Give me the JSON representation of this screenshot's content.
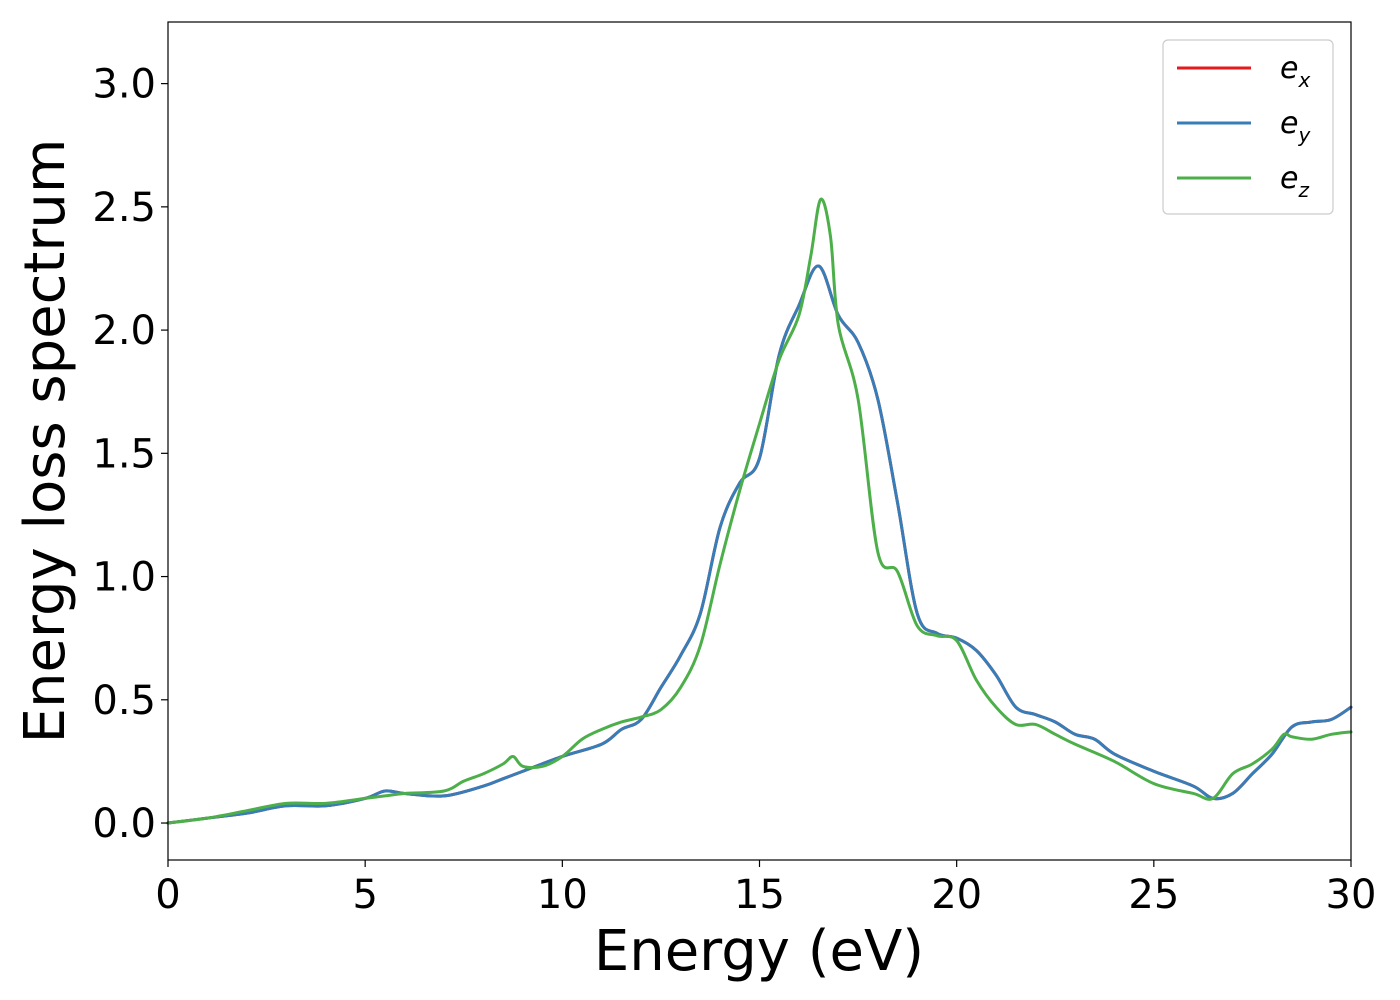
{
  "chart_data": {
    "type": "line",
    "title": "",
    "xlabel": "Energy (eV)",
    "ylabel": "Energy loss spectrum",
    "xlim": [
      0,
      30
    ],
    "ylim": [
      -0.15,
      3.25
    ],
    "xticks": [
      0,
      5,
      10,
      15,
      20,
      25,
      30
    ],
    "xtick_labels": [
      "0",
      "5",
      "10",
      "15",
      "20",
      "25",
      "30"
    ],
    "yticks": [
      0.0,
      0.5,
      1.0,
      1.5,
      2.0,
      2.5,
      3.0
    ],
    "ytick_labels": [
      "0.0",
      "0.5",
      "1.0",
      "1.5",
      "2.0",
      "2.5",
      "3.0"
    ],
    "grid": false,
    "legend_position": "top-right",
    "series": [
      {
        "name": "e_x",
        "legend_base": "e",
        "legend_sub": "x",
        "color": "#e41a1c",
        "x": [
          0,
          1,
          2,
          3,
          4,
          5,
          5.5,
          6,
          7,
          8,
          8.5,
          9,
          10,
          11,
          11.5,
          12,
          12.5,
          13,
          13.5,
          14,
          14.5,
          15,
          15.5,
          16,
          16.5,
          17,
          17.5,
          18,
          18.5,
          19,
          19.5,
          20,
          20.5,
          21,
          21.5,
          22,
          22.5,
          23,
          23.5,
          24,
          25,
          26,
          26.5,
          27,
          27.5,
          28,
          28.5,
          29,
          29.5,
          30
        ],
        "y": [
          0.0,
          0.02,
          0.04,
          0.07,
          0.07,
          0.1,
          0.13,
          0.12,
          0.11,
          0.15,
          0.18,
          0.21,
          0.27,
          0.32,
          0.38,
          0.42,
          0.55,
          0.68,
          0.85,
          1.2,
          1.38,
          1.48,
          1.9,
          2.1,
          2.26,
          2.06,
          1.95,
          1.72,
          1.3,
          0.85,
          0.77,
          0.75,
          0.7,
          0.6,
          0.47,
          0.44,
          0.41,
          0.36,
          0.34,
          0.28,
          0.21,
          0.15,
          0.1,
          0.12,
          0.2,
          0.28,
          0.39,
          0.41,
          0.42,
          0.47
        ]
      },
      {
        "name": "e_y",
        "legend_base": "e",
        "legend_sub": "y",
        "color": "#377eb8",
        "x": [
          0,
          1,
          2,
          3,
          4,
          5,
          5.5,
          6,
          7,
          8,
          8.5,
          9,
          10,
          11,
          11.5,
          12,
          12.5,
          13,
          13.5,
          14,
          14.5,
          15,
          15.5,
          16,
          16.5,
          17,
          17.5,
          18,
          18.5,
          19,
          19.5,
          20,
          20.5,
          21,
          21.5,
          22,
          22.5,
          23,
          23.5,
          24,
          25,
          26,
          26.5,
          27,
          27.5,
          28,
          28.5,
          29,
          29.5,
          30
        ],
        "y": [
          0.0,
          0.02,
          0.04,
          0.07,
          0.07,
          0.1,
          0.13,
          0.12,
          0.11,
          0.15,
          0.18,
          0.21,
          0.27,
          0.32,
          0.38,
          0.42,
          0.55,
          0.68,
          0.85,
          1.2,
          1.38,
          1.48,
          1.9,
          2.1,
          2.26,
          2.06,
          1.95,
          1.72,
          1.3,
          0.85,
          0.77,
          0.75,
          0.7,
          0.6,
          0.47,
          0.44,
          0.41,
          0.36,
          0.34,
          0.28,
          0.21,
          0.15,
          0.1,
          0.12,
          0.2,
          0.28,
          0.39,
          0.41,
          0.42,
          0.47
        ]
      },
      {
        "name": "e_z",
        "legend_base": "e",
        "legend_sub": "z",
        "color": "#4daf4a",
        "x": [
          0,
          1,
          2,
          3,
          4,
          5,
          5.5,
          6,
          7,
          7.5,
          8,
          8.5,
          8.75,
          9,
          9.5,
          10,
          10.5,
          11,
          11.5,
          12,
          12.5,
          13,
          13.5,
          14,
          14.5,
          15,
          15.5,
          16,
          16.3,
          16.55,
          16.8,
          17,
          17.5,
          18,
          18.5,
          19,
          19.5,
          20,
          20.5,
          21,
          21.5,
          22,
          22.5,
          23,
          24,
          25,
          26,
          26.5,
          27,
          27.5,
          28,
          28.3,
          28.5,
          29,
          29.5,
          30
        ],
        "y": [
          0.0,
          0.02,
          0.05,
          0.08,
          0.08,
          0.1,
          0.11,
          0.12,
          0.13,
          0.17,
          0.2,
          0.24,
          0.27,
          0.23,
          0.23,
          0.27,
          0.34,
          0.38,
          0.41,
          0.43,
          0.46,
          0.55,
          0.72,
          1.05,
          1.35,
          1.62,
          1.88,
          2.06,
          2.3,
          2.53,
          2.38,
          2.02,
          1.72,
          1.1,
          1.02,
          0.8,
          0.76,
          0.74,
          0.58,
          0.47,
          0.4,
          0.4,
          0.36,
          0.32,
          0.25,
          0.16,
          0.12,
          0.1,
          0.2,
          0.24,
          0.3,
          0.36,
          0.35,
          0.34,
          0.36,
          0.37
        ]
      }
    ]
  }
}
